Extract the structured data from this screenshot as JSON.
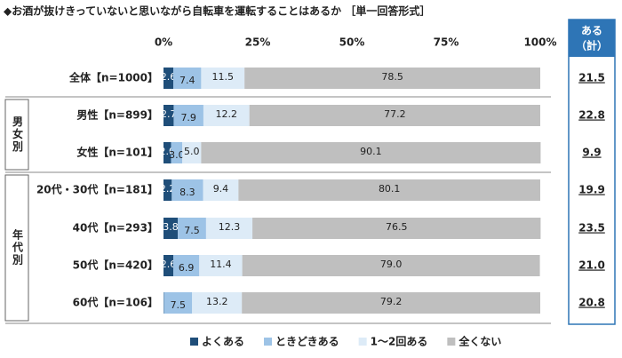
{
  "chart_data": {
    "type": "stacked-bar-horizontal",
    "title": "◆お酒が抜けきっていないと思いながら自転車を運転することはあるか ［単一回答形式］",
    "categories": [
      "全体【n=1000】",
      "男性【n=899】",
      "女性【n=101】",
      "20代・30代【n=181】",
      "40代【n=293】",
      "50代【n=420】",
      "60代【n=106】"
    ],
    "group_labels": [
      "男女別",
      "年代別"
    ],
    "xlim": [
      0,
      100
    ],
    "xticks": [
      {
        "value": 0,
        "label": "0%"
      },
      {
        "value": 25,
        "label": "25%"
      },
      {
        "value": 50,
        "label": "50%"
      },
      {
        "value": 75,
        "label": "75%"
      },
      {
        "value": 100,
        "label": "100%"
      }
    ],
    "series": [
      {
        "name": "よくある",
        "color": "#1f4e79",
        "values": [
          2.6,
          2.7,
          2.0,
          2.2,
          3.8,
          2.6,
          0.1
        ],
        "value_labels": [
          "2.6",
          "2.7",
          "2.0",
          "2.2",
          "3.8",
          "2.6",
          null
        ]
      },
      {
        "name": "ときどきある",
        "color": "#9dc3e6",
        "values": [
          7.4,
          7.9,
          3.0,
          8.3,
          7.5,
          6.9,
          7.5
        ],
        "value_labels": [
          "7.4",
          "7.9",
          "3.0",
          "8.3",
          "7.5",
          "6.9",
          "7.5"
        ]
      },
      {
        "name": "1～2回ある",
        "color": "#ddebf7",
        "values": [
          11.5,
          12.2,
          5.0,
          9.4,
          12.3,
          11.4,
          13.2
        ],
        "value_labels": [
          "11.5",
          "12.2",
          "5.0",
          "9.4",
          "12.3",
          "11.4",
          "13.2"
        ]
      },
      {
        "name": "全くない",
        "color": "#bfbfbf",
        "values": [
          78.5,
          77.2,
          90.1,
          80.1,
          76.5,
          79.0,
          79.2
        ],
        "value_labels": [
          "78.5",
          "77.2",
          "90.1",
          "80.1",
          "76.5",
          "79.0",
          "79.2"
        ]
      }
    ],
    "totals": {
      "title": [
        "ある",
        "（計）"
      ],
      "color": "#2e75b6",
      "values": [
        21.5,
        22.8,
        9.9,
        19.9,
        23.5,
        21.0,
        20.8
      ],
      "value_labels": [
        "21.5",
        "22.8",
        "9.9",
        "19.9",
        "23.5",
        "21.0",
        "20.8"
      ]
    }
  }
}
